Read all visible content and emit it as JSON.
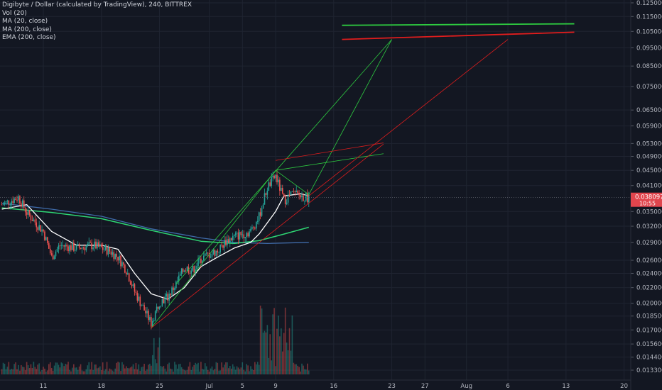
{
  "legend": {
    "title": "Digibyte / Dollar (calculated by TradingView), 240, BITTREX",
    "indicators": [
      "Vol (20)",
      "MA (20, close)",
      "MA (200, close)",
      "EMA (200, close)"
    ]
  },
  "price_label": {
    "value": "0.03809775",
    "countdown": "10:55",
    "color": "#e0454d"
  },
  "colors": {
    "background": "#131722",
    "grid": "#1f2431",
    "up_candle": "#26a69a",
    "down_candle": "#ef5350",
    "ma20": "#ffffff",
    "ma200": "#3f6aa8",
    "ema200": "#2ed573",
    "trend_green": "#2ecc40",
    "trend_red": "#e01d1d",
    "axis_text": "#b2b5be"
  },
  "chart_data": {
    "type": "candlestick",
    "title": "Digibyte / Dollar (calculated by TradingView), 240, BITTREX",
    "y_scale": "log",
    "y_ticks": [
      "0.12500000",
      "0.11500000",
      "0.10500000",
      "0.09500000",
      "0.08500000",
      "0.07500000",
      "0.06500000",
      "0.05900000",
      "0.05300000",
      "0.04900000",
      "0.04500000",
      "0.04100000",
      "0.03500000",
      "0.03200000",
      "0.02900000",
      "0.02600000",
      "0.02400000",
      "0.02200000",
      "0.02000000",
      "0.01850000",
      "0.01700000",
      "0.01560000",
      "0.01440000",
      "0.01330000"
    ],
    "x_ticks": [
      "11",
      "18",
      "25",
      "Jul",
      "5",
      "9",
      "16",
      "23",
      "27",
      "Aug",
      "6",
      "13",
      "20"
    ],
    "last_price": 0.03809775,
    "price_path": [
      {
        "x": "Jun 6",
        "y": 0.0365
      },
      {
        "x": "Jun 8",
        "y": 0.0382
      },
      {
        "x": "Jun 9",
        "y": 0.0348
      },
      {
        "x": "Jun 11",
        "y": 0.031
      },
      {
        "x": "Jun 12",
        "y": 0.0265
      },
      {
        "x": "Jun 13",
        "y": 0.0285
      },
      {
        "x": "Jun 15",
        "y": 0.028
      },
      {
        "x": "Jun 17",
        "y": 0.0285
      },
      {
        "x": "Jun 19",
        "y": 0.0275
      },
      {
        "x": "Jun 20",
        "y": 0.0265
      },
      {
        "x": "Jun 21",
        "y": 0.0245
      },
      {
        "x": "Jun 22",
        "y": 0.0215
      },
      {
        "x": "Jun 24",
        "y": 0.0177
      },
      {
        "x": "Jun 25",
        "y": 0.0202
      },
      {
        "x": "Jun 26",
        "y": 0.0208
      },
      {
        "x": "Jun 27",
        "y": 0.0225
      },
      {
        "x": "Jun 28",
        "y": 0.0248
      },
      {
        "x": "Jun 29",
        "y": 0.0245
      },
      {
        "x": "Jun 30",
        "y": 0.0262
      },
      {
        "x": "Jul 1",
        "y": 0.027
      },
      {
        "x": "Jul 2",
        "y": 0.0275
      },
      {
        "x": "Jul 3",
        "y": 0.0292
      },
      {
        "x": "Jul 4",
        "y": 0.03
      },
      {
        "x": "Jul 5",
        "y": 0.0305
      },
      {
        "x": "Jul 6",
        "y": 0.031
      },
      {
        "x": "Jul 7",
        "y": 0.034
      },
      {
        "x": "Jul 8",
        "y": 0.0405
      },
      {
        "x": "Jul 9",
        "y": 0.0435
      },
      {
        "x": "Jul 10",
        "y": 0.0375
      },
      {
        "x": "Jul 11",
        "y": 0.039
      },
      {
        "x": "Jul 12",
        "y": 0.0385
      },
      {
        "x": "Jul 13",
        "y": 0.0381
      }
    ],
    "ma20_path": [
      {
        "x": "Jun 6",
        "y": 0.0355
      },
      {
        "x": "Jun 9",
        "y": 0.0365
      },
      {
        "x": "Jun 12",
        "y": 0.031
      },
      {
        "x": "Jun 15",
        "y": 0.0285
      },
      {
        "x": "Jun 18",
        "y": 0.0285
      },
      {
        "x": "Jun 20",
        "y": 0.0278
      },
      {
        "x": "Jun 22",
        "y": 0.024
      },
      {
        "x": "Jun 24",
        "y": 0.0212
      },
      {
        "x": "Jun 26",
        "y": 0.0205
      },
      {
        "x": "Jun 28",
        "y": 0.022
      },
      {
        "x": "Jun 30",
        "y": 0.025
      },
      {
        "x": "Jul 2",
        "y": 0.0265
      },
      {
        "x": "Jul 4",
        "y": 0.028
      },
      {
        "x": "Jul 6",
        "y": 0.029
      },
      {
        "x": "Jul 7",
        "y": 0.0305
      },
      {
        "x": "Jul 9",
        "y": 0.035
      },
      {
        "x": "Jul 10",
        "y": 0.0385
      },
      {
        "x": "Jul 12",
        "y": 0.039
      },
      {
        "x": "Jul 13",
        "y": 0.0385
      }
    ],
    "ma200_path": [
      {
        "x": "Jun 6",
        "y": 0.0368
      },
      {
        "x": "Jun 12",
        "y": 0.0355
      },
      {
        "x": "Jun 18",
        "y": 0.034
      },
      {
        "x": "Jun 24",
        "y": 0.0315
      },
      {
        "x": "Jun 30",
        "y": 0.0298
      },
      {
        "x": "Jul 4",
        "y": 0.029
      },
      {
        "x": "Jul 8",
        "y": 0.0288
      },
      {
        "x": "Jul 13",
        "y": 0.029
      }
    ],
    "ema200_path": [
      {
        "x": "Jun 6",
        "y": 0.0358
      },
      {
        "x": "Jun 12",
        "y": 0.0348
      },
      {
        "x": "Jun 18",
        "y": 0.0335
      },
      {
        "x": "Jun 24",
        "y": 0.0312
      },
      {
        "x": "Jun 30",
        "y": 0.0292
      },
      {
        "x": "Jul 4",
        "y": 0.0288
      },
      {
        "x": "Jul 7",
        "y": 0.0293
      },
      {
        "x": "Jul 10",
        "y": 0.0305
      },
      {
        "x": "Jul 13",
        "y": 0.0318
      }
    ],
    "trendlines": [
      {
        "color": "green",
        "x1": "Jun 27",
        "y1": 0.0225,
        "x2": "Jul 23",
        "y2": 0.1
      },
      {
        "color": "green",
        "x1": "Jun 24",
        "y1": 0.0172,
        "x2": "Jul 9",
        "y2": 0.045
      },
      {
        "color": "green",
        "x1": "Jul 9",
        "y1": 0.045,
        "x2": "Jul 13",
        "y2": 0.0388
      },
      {
        "color": "green",
        "x1": "Jul 13",
        "y1": 0.0388,
        "x2": "Jul 23",
        "y2": 0.1
      },
      {
        "color": "green",
        "x1": "Jul 9",
        "y1": 0.045,
        "x2": "Jul 22",
        "y2": 0.0498
      },
      {
        "color": "green",
        "x1": "Jul 17",
        "y1": 0.109,
        "x2": "Aug 14",
        "y2": 0.11
      },
      {
        "color": "red",
        "x1": "Jun 24",
        "y1": 0.0172,
        "x2": "Jul 22",
        "y2": 0.0528
      },
      {
        "color": "red",
        "x1": "Jul 9",
        "y1": 0.0478,
        "x2": "Jul 22",
        "y2": 0.0532
      },
      {
        "color": "red",
        "x1": "Jul 13",
        "y1": 0.0385,
        "x2": "Aug 6",
        "y2": 0.1
      },
      {
        "color": "red",
        "x1": "Jul 17",
        "y1": 0.1,
        "x2": "Aug 14",
        "y2": 0.1045
      }
    ],
    "legend_placement": "top-left",
    "grid": true
  }
}
